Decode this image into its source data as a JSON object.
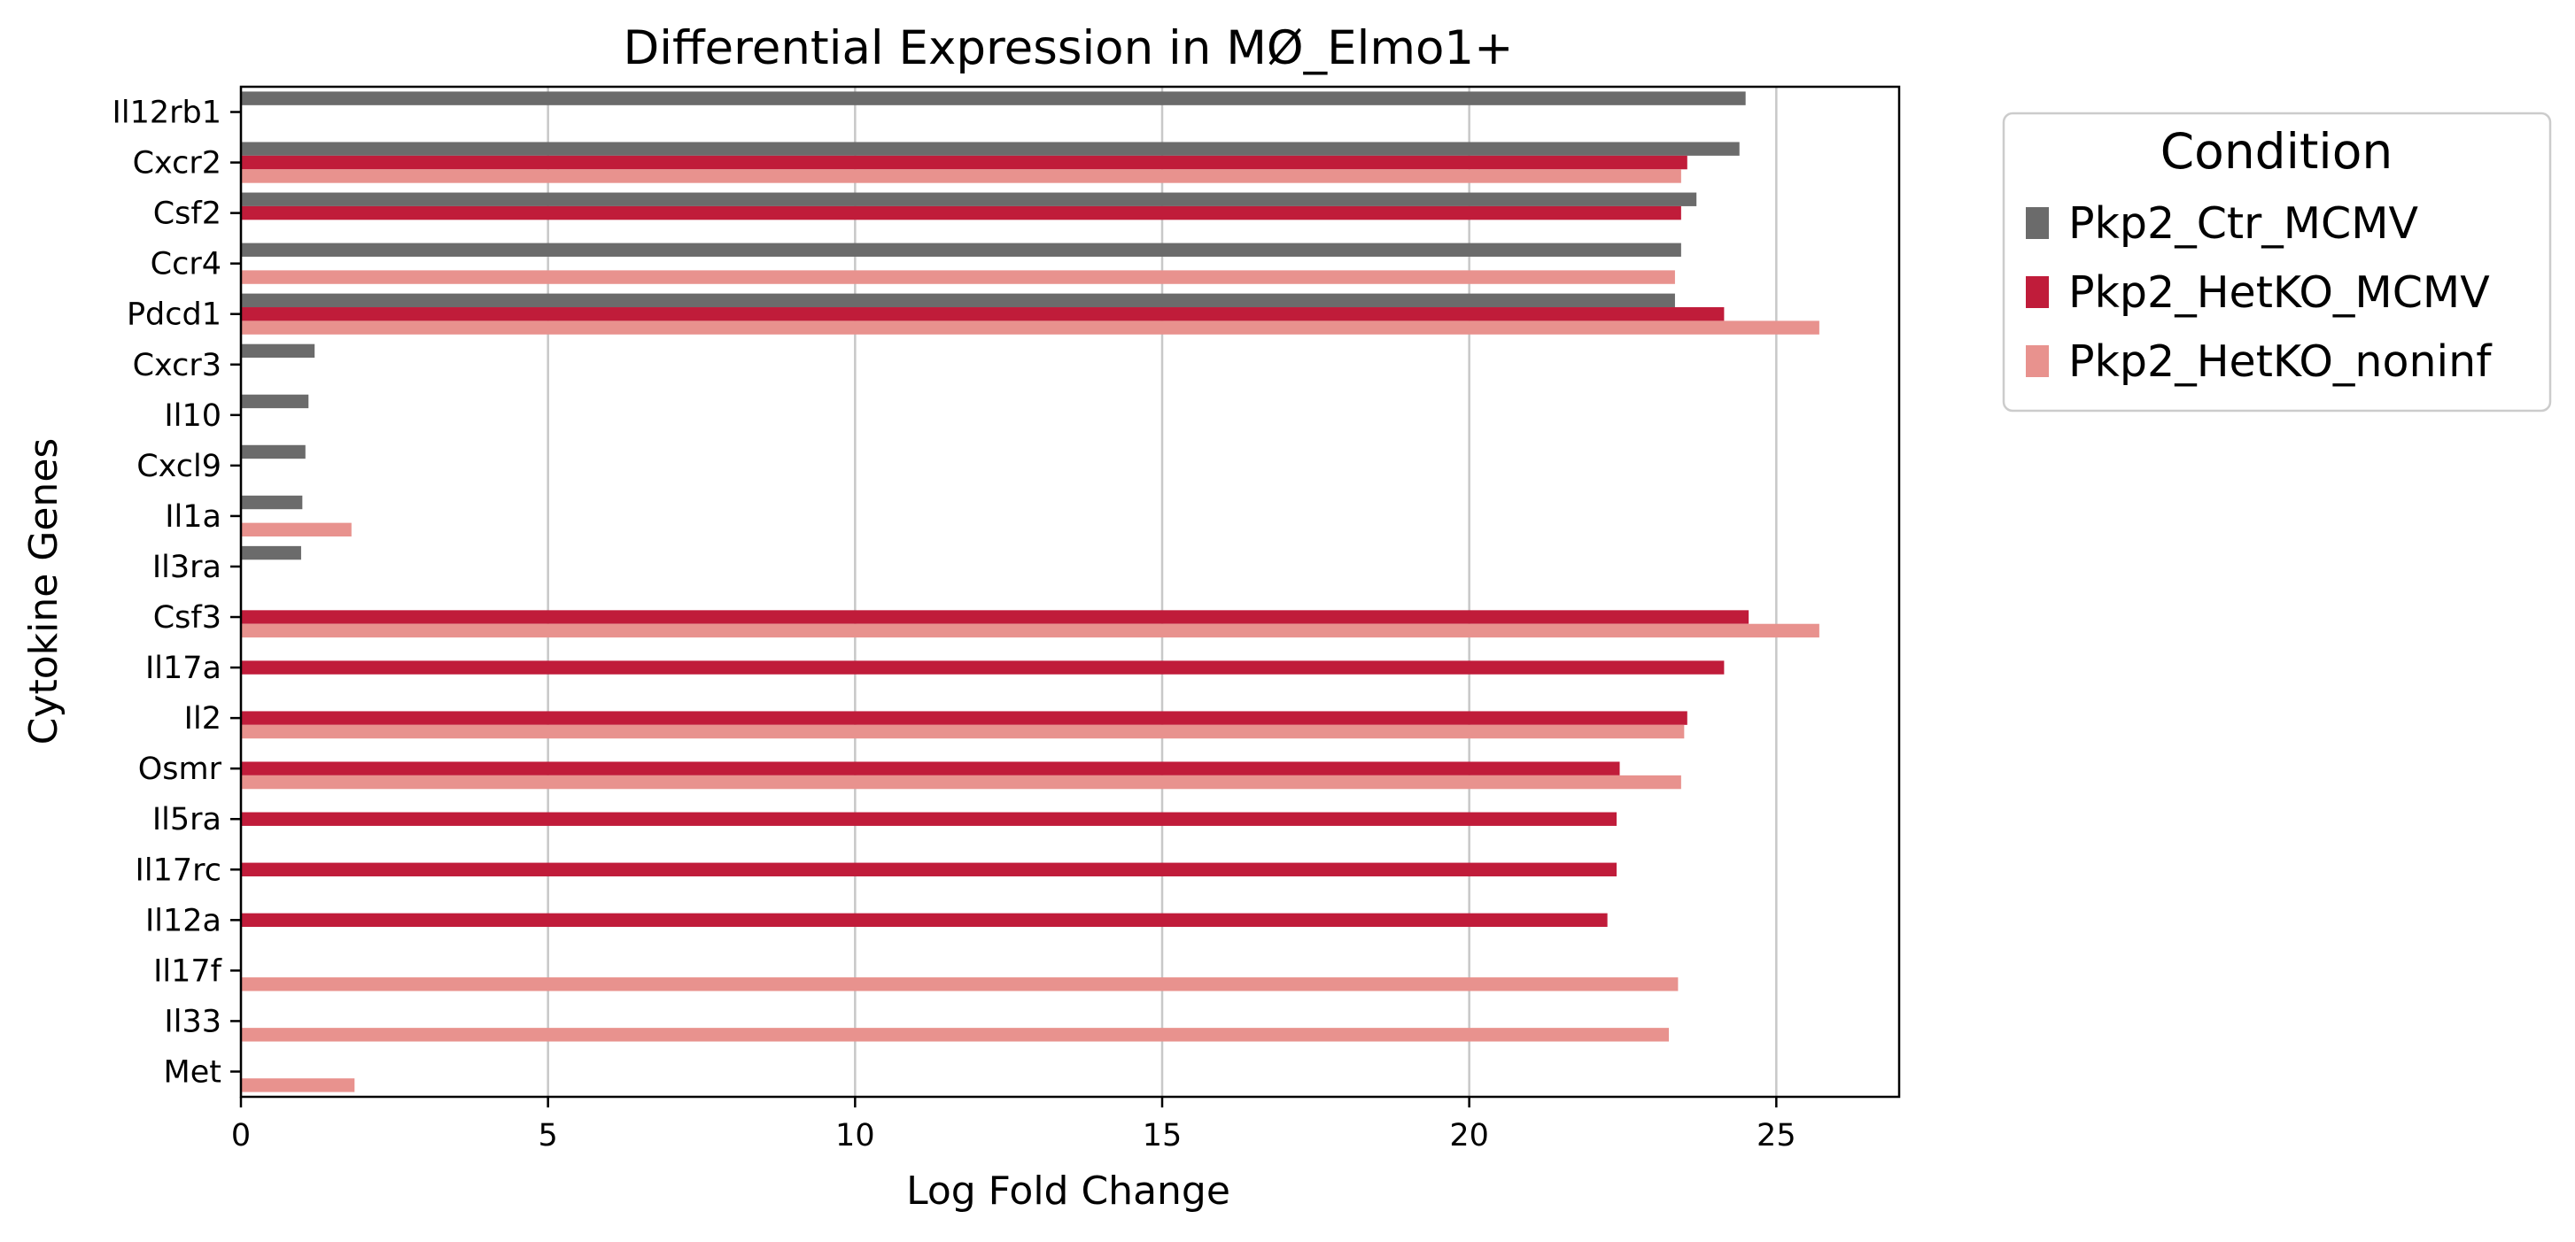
{
  "chart_data": {
    "type": "bar",
    "orientation": "horizontal",
    "title": "Differential Expression in MØ_Elmo1+",
    "xlabel": "Log Fold Change",
    "ylabel": "Cytokine Genes",
    "xlim": [
      0,
      27
    ],
    "xticks": [
      0,
      5,
      10,
      15,
      20,
      25
    ],
    "grid": "x",
    "legend": {
      "title": "Condition",
      "placement": "outside-top-right"
    },
    "categories": [
      "Il12rb1",
      "Cxcr2",
      "Csf2",
      "Ccr4",
      "Pdcd1",
      "Cxcr3",
      "Il10",
      "Cxcl9",
      "Il1a",
      "Il3ra",
      "Csf3",
      "Il17a",
      "Il2",
      "Osmr",
      "Il5ra",
      "Il17rc",
      "Il12a",
      "Il17f",
      "Il33",
      "Met"
    ],
    "series": [
      {
        "name": "Pkp2_Ctr_MCMV",
        "color": "#6b6b6b",
        "values": [
          24.5,
          24.4,
          23.7,
          23.45,
          23.35,
          1.2,
          1.1,
          1.05,
          1.0,
          0.98,
          null,
          null,
          null,
          null,
          null,
          null,
          null,
          null,
          null,
          null
        ]
      },
      {
        "name": "Pkp2_HetKO_MCMV",
        "color": "#c01c3a",
        "values": [
          null,
          23.55,
          23.45,
          null,
          24.15,
          null,
          null,
          null,
          null,
          null,
          24.55,
          24.15,
          23.55,
          22.45,
          22.4,
          22.4,
          22.25,
          null,
          null,
          null
        ]
      },
      {
        "name": "Pkp2_HetKO_noninf",
        "color": "#e8928e",
        "values": [
          null,
          23.45,
          null,
          23.35,
          25.7,
          null,
          null,
          null,
          1.8,
          null,
          25.7,
          null,
          23.5,
          23.45,
          null,
          null,
          null,
          23.4,
          23.25,
          1.85
        ]
      }
    ]
  }
}
